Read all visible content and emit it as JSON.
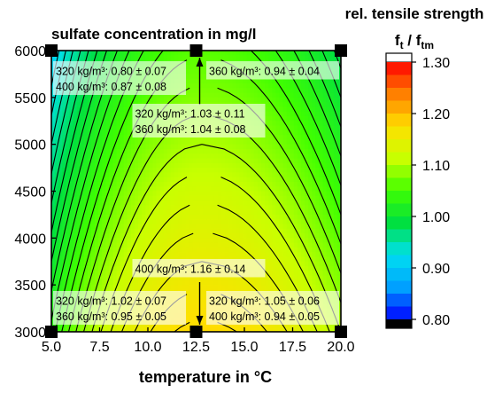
{
  "chart_data": {
    "type": "heatmap",
    "title": "sulfate concentration in mg/l",
    "xlabel": "temperature in °C",
    "ylabel": "",
    "xlim": [
      5.0,
      20.0
    ],
    "ylim": [
      3000,
      6000
    ],
    "x_ticks": [
      "5.0",
      "7.5",
      "10.0",
      "12.5",
      "15.0",
      "17.5",
      "20.0"
    ],
    "y_ticks": [
      "3000",
      "3500",
      "4000",
      "4500",
      "5000",
      "5500",
      "6000"
    ],
    "colorbar": {
      "title": "rel. tensile strength",
      "symbol": "f",
      "symbol_sub": "t",
      "symbol_sep": " / f",
      "symbol_sub2": "tm",
      "range": [
        0.8,
        1.3
      ],
      "ticks": [
        "0.80",
        "0.90",
        "1.00",
        "1.10",
        "1.20",
        "1.30"
      ],
      "colors": [
        "#0000ff",
        "#00a0ff",
        "#00e0f0",
        "#00e040",
        "#40ff00",
        "#c8ff00",
        "#ffe000",
        "#ff8000",
        "#ff0000"
      ],
      "below_color": "#000000",
      "above_color": "#ffffff"
    },
    "annotations": [
      {
        "line1": "320 kg/m³: 0.80 ± 0.07",
        "line2": "400 kg/m³: 0.87 ± 0.08",
        "temperature": 5.0,
        "sulfate": 6000
      },
      {
        "line1": "360 kg/m³: 0.94 ± 0.04",
        "temperature": 20.0,
        "sulfate": 6000
      },
      {
        "line1": "320 kg/m³: 1.03 ± 0.11",
        "line2": "360 kg/m³: 1.04 ± 0.08",
        "temperature": 12.5,
        "sulfate": 6000
      },
      {
        "line1": "400 kg/m³: 1.16 ± 0.14",
        "temperature": 12.5,
        "sulfate": 3000
      },
      {
        "line1": "320 kg/m³: 1.02 ± 0.07",
        "line2": "360 kg/m³: 0.95 ± 0.05",
        "temperature": 5.0,
        "sulfate": 3000
      },
      {
        "line1": "320 kg/m³: 1.05 ± 0.06",
        "line2": "400 kg/m³: 0.94 ± 0.05",
        "temperature": 20.0,
        "sulfate": 3000
      }
    ],
    "data_points": [
      {
        "temperature": 5.0,
        "sulfate": 3000
      },
      {
        "temperature": 12.5,
        "sulfate": 3000
      },
      {
        "temperature": 20.0,
        "sulfate": 3000
      },
      {
        "temperature": 5.0,
        "sulfate": 6000
      },
      {
        "temperature": 12.5,
        "sulfate": 6000
      },
      {
        "temperature": 20.0,
        "sulfate": 6000
      }
    ],
    "surface": {
      "peak_temperature": 12.8,
      "peak_value": 1.18,
      "values_at_6000": {
        "5.0": 0.91,
        "12.8": 1.06,
        "20.0": 0.98
      },
      "values_at_3000": {
        "5.0": 1.03,
        "12.8": 1.18,
        "20.0": 1.1
      }
    }
  }
}
